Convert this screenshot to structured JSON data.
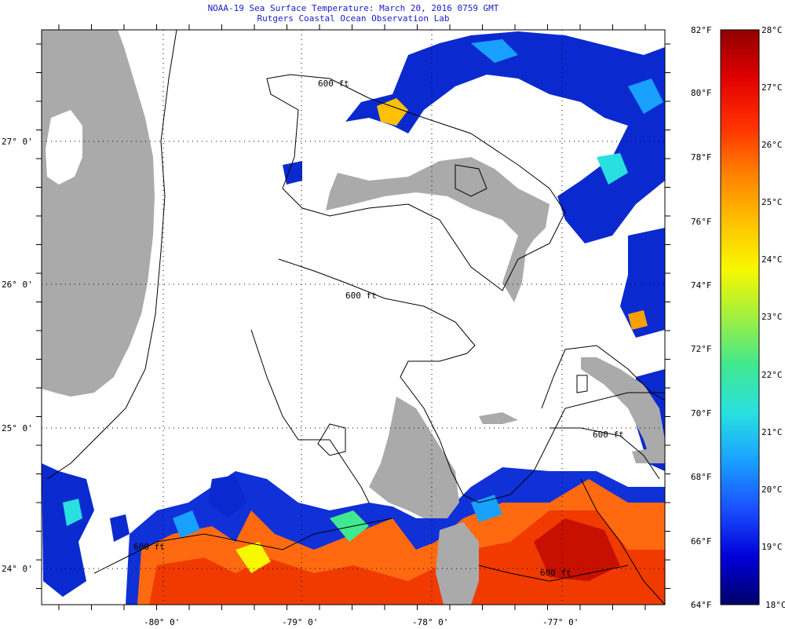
{
  "header": {
    "title": "NOAA-19 Sea Surface Temperature:  March 20, 2016 0759 GMT",
    "subtitle": "Rutgers Coastal Ocean Observation Lab"
  },
  "map": {
    "lat_labels": [
      "27° 0'",
      "26° 0'",
      "25° 0'",
      "24° 0'"
    ],
    "lon_labels": [
      "-80° 0'",
      "-79° 0'",
      "-78° 0'",
      "-77° 0'"
    ],
    "contour_label": "600 ft",
    "land_color": "#aaaaaa"
  },
  "colorbar": {
    "fahrenheit_labels": [
      "82°F",
      "80°F",
      "78°F",
      "76°F",
      "74°F",
      "72°F",
      "70°F",
      "68°F",
      "66°F",
      "64°F"
    ],
    "celsius_labels": [
      "28°C",
      "27°C",
      "26°C",
      "25°C",
      "24°C",
      "23°C",
      "22°C",
      "21°C",
      "20°C",
      "19°C",
      "18°C"
    ],
    "stops": [
      "#00006b",
      "#0000d8",
      "#1a50ff",
      "#1aa0ff",
      "#28e0e0",
      "#40e890",
      "#a0f040",
      "#f8f800",
      "#ffc000",
      "#ff8000",
      "#ff3000",
      "#e00000",
      "#900000"
    ]
  }
}
